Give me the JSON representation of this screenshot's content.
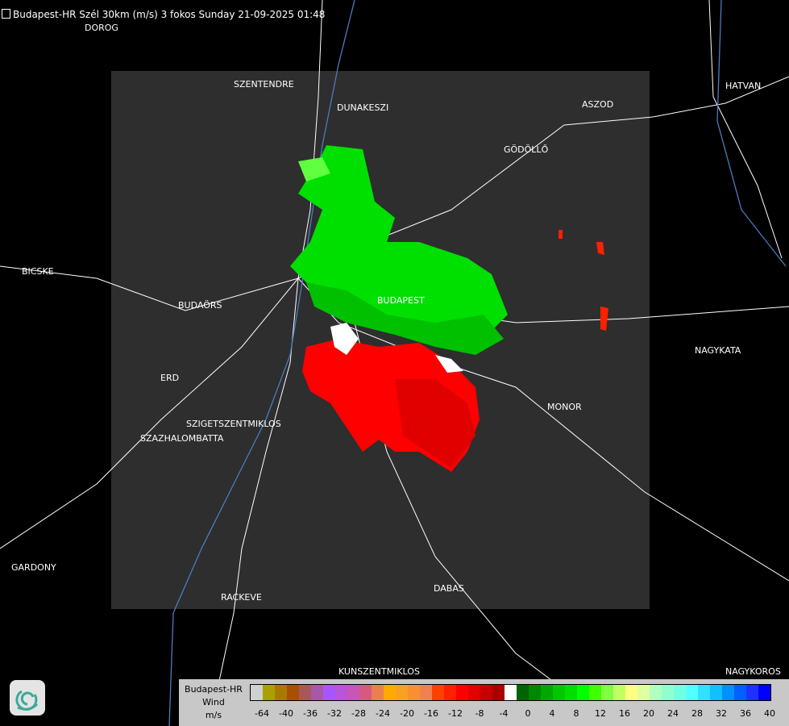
{
  "title": "Budapest-HR Szél 30km (m/s) 3 fokos Sunday 21-09-2025 01:48",
  "cities": [
    "DOROG",
    "SZENTENDRE",
    "DUNAKESZI",
    "ASZOD",
    "HATVAN",
    "GÖDÖLLŐ",
    "BICSKE",
    "BUDAÖRS",
    "BUDAPEST",
    "NAGYKATA",
    "ERD",
    "MONOR",
    "SZIGETSZENTMIKLOS",
    "SZAZHALOMBATTA",
    "GARDONY",
    "DABAS",
    "RACKEVE",
    "KUNSZENTMIKLOS",
    "NAGYKOROS"
  ],
  "legend": {
    "station": "Budapest-HR",
    "quantity": "Wind",
    "unit": "m/s",
    "colors": [
      "#d0d0d0",
      "#aaa000",
      "#aa7a00",
      "#a85000",
      "#a85858",
      "#a858a8",
      "#a855ff",
      "#b855d8",
      "#c855b8",
      "#d85880",
      "#e88050",
      "#ffaa00",
      "#f8a020",
      "#f89030",
      "#f08050",
      "#ff4000",
      "#ff2000",
      "#ff0000",
      "#e00000",
      "#c80000",
      "#a80000",
      "#ffffff",
      "#006400",
      "#008800",
      "#00a800",
      "#00c800",
      "#00e000",
      "#00ff00",
      "#40ff00",
      "#80ff40",
      "#c0ff60",
      "#ffff80",
      "#e0ffa0",
      "#b0ffc0",
      "#90ffd0",
      "#70ffe0",
      "#50ffff",
      "#30e0ff",
      "#10c0ff",
      "#0090ff",
      "#0060ff",
      "#2030ff",
      "#0000ff"
    ],
    "ticks": [
      "-64",
      "-40",
      "-36",
      "-32",
      "-28",
      "-24",
      "-20",
      "-16",
      "-12",
      "-8",
      "-4",
      "0",
      "4",
      "8",
      "12",
      "16",
      "20",
      "24",
      "28",
      "32",
      "36",
      "40"
    ]
  }
}
